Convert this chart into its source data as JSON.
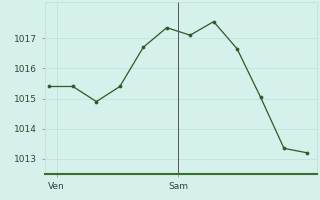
{
  "x_values": [
    0,
    1,
    2,
    3,
    4,
    5,
    6,
    7,
    8,
    9,
    10,
    11
  ],
  "y_values": [
    1015.4,
    1015.4,
    1014.9,
    1015.4,
    1016.7,
    1017.35,
    1017.1,
    1017.55,
    1016.65,
    1015.05,
    1013.35,
    1013.2
  ],
  "xtick_positions": [
    0.3,
    5.5
  ],
  "xtick_labels": [
    "Ven",
    "Sam"
  ],
  "ytick_values": [
    1013,
    1014,
    1015,
    1016,
    1017
  ],
  "ylim": [
    1012.5,
    1018.2
  ],
  "xlim": [
    -0.2,
    11.4
  ],
  "line_color": "#2d5a27",
  "marker_color": "#2d5a27",
  "bg_color": "#d6f0eb",
  "grid_color": "#c0e0d8",
  "vline_x": 5.5,
  "figsize": [
    3.2,
    2.0
  ],
  "dpi": 100
}
